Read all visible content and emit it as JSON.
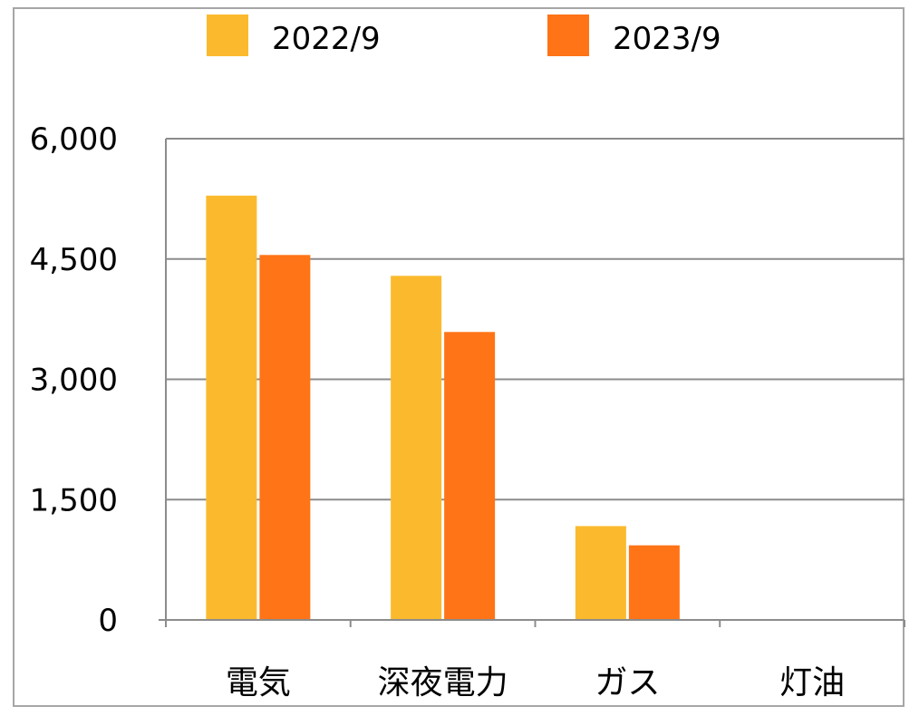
{
  "chart_data": {
    "type": "bar",
    "categories": [
      "電気",
      "深夜電力",
      "ガス",
      "灯油"
    ],
    "series": [
      {
        "name": "2022/9",
        "color": "#FBBA2E",
        "values": [
          5290,
          4290,
          1170,
          0
        ]
      },
      {
        "name": "2023/9",
        "color": "#FF7416",
        "values": [
          4550,
          3590,
          930,
          0
        ]
      }
    ],
    "ylim": [
      0,
      6000
    ],
    "yticks": [
      0,
      1500,
      3000,
      4500,
      6000
    ],
    "ytick_labels": [
      "0",
      "1,500",
      "3,000",
      "4,500",
      "6,000"
    ],
    "grid": true,
    "legend_position": "top",
    "title": "",
    "xlabel": "",
    "ylabel": ""
  }
}
